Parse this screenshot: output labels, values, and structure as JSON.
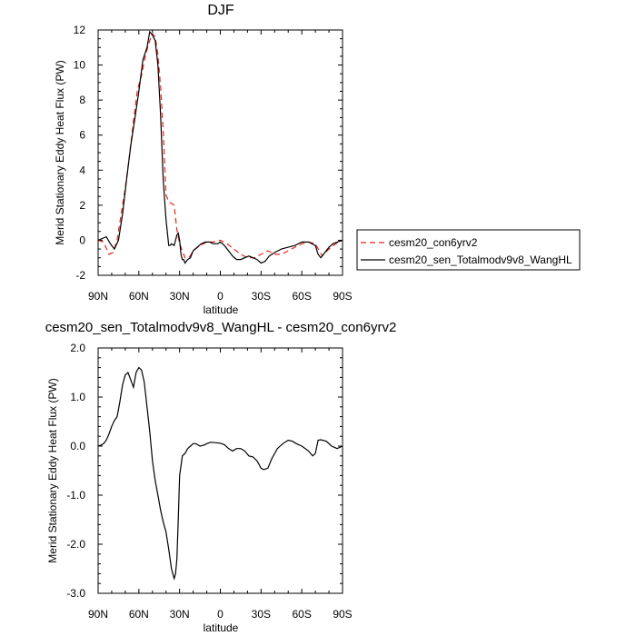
{
  "chart_data": [
    {
      "type": "line",
      "title": "DJF",
      "xlabel": "latitude",
      "ylabel": "Merid Stationary Eddy Heat Flux (PW)",
      "xlim": [
        90,
        -90
      ],
      "ylim": [
        -2,
        12
      ],
      "x_ticks": [
        90,
        60,
        30,
        0,
        -30,
        -60,
        -90
      ],
      "x_tick_labels": [
        "90N",
        "60N",
        "30N",
        "0",
        "30S",
        "60S",
        "90S"
      ],
      "y_ticks": [
        -2,
        0,
        2,
        4,
        6,
        8,
        10,
        12
      ],
      "y_tick_labels": [
        "-2",
        "0",
        "2",
        "4",
        "6",
        "8",
        "10",
        "12"
      ],
      "legend_position": "right",
      "series": [
        {
          "name": "cesm20_con6yrv2",
          "color": "#e8231e",
          "dash": "dashed",
          "x": [
            90,
            86,
            82,
            79,
            76,
            73,
            70,
            67,
            64,
            61,
            58,
            55,
            52,
            50,
            48,
            46,
            44,
            42,
            40,
            38,
            36,
            34,
            32,
            30,
            28,
            26,
            23,
            20,
            15,
            10,
            5,
            0,
            -5,
            -10,
            -15,
            -20,
            -25,
            -30,
            -35,
            -40,
            -45,
            -50,
            -55,
            -60,
            -65,
            -70,
            -75,
            -80,
            -85,
            -90
          ],
          "y": [
            0.0,
            -0.1,
            -0.8,
            -0.7,
            0.0,
            1.5,
            3.0,
            4.8,
            6.8,
            8.6,
            9.4,
            10.6,
            11.4,
            11.8,
            11.6,
            10.6,
            8.8,
            6.2,
            2.6,
            2.2,
            2.1,
            2.0,
            0.6,
            -0.2,
            -0.6,
            -1.0,
            -1.0,
            -0.6,
            -0.3,
            -0.1,
            -0.1,
            0.0,
            -0.2,
            -0.5,
            -0.8,
            -1.0,
            -1.0,
            -0.8,
            -0.6,
            -0.8,
            -0.8,
            -0.6,
            -0.4,
            -0.2,
            -0.1,
            -0.2,
            -0.9,
            -0.5,
            -0.2,
            0.0
          ]
        },
        {
          "name": "cesm20_sen_Totalmodv9v8_WangHL",
          "color": "#000000",
          "dash": "solid",
          "x": [
            90,
            87,
            84,
            81,
            78,
            75,
            72,
            69,
            66,
            63,
            60,
            57,
            54,
            52,
            50,
            48,
            46,
            44,
            42,
            40,
            38,
            37,
            36,
            34,
            32,
            31,
            30,
            29,
            28,
            27,
            26,
            24,
            22,
            20,
            17,
            14,
            11,
            8,
            5,
            2,
            0,
            -3,
            -6,
            -9,
            -12,
            -15,
            -18,
            -21,
            -24,
            -27,
            -30,
            -33,
            -36,
            -40,
            -45,
            -50,
            -55,
            -60,
            -65,
            -70,
            -72,
            -74,
            -77,
            -80,
            -83,
            -86,
            -90
          ],
          "y": [
            0.0,
            0.1,
            0.2,
            -0.2,
            -0.5,
            0.0,
            1.5,
            3.5,
            5.4,
            6.9,
            8.5,
            10.3,
            11.0,
            11.9,
            11.7,
            11.4,
            10.0,
            7.2,
            3.4,
            1.2,
            -0.3,
            -0.3,
            -0.2,
            -0.3,
            0.3,
            0.4,
            0.0,
            -0.8,
            -1.1,
            -1.1,
            -1.3,
            -1.1,
            -1.0,
            -0.6,
            -0.4,
            -0.2,
            -0.1,
            -0.1,
            -0.2,
            -0.2,
            -0.1,
            -0.3,
            -0.6,
            -0.9,
            -1.1,
            -1.1,
            -1.0,
            -0.9,
            -1.0,
            -1.1,
            -1.3,
            -1.2,
            -0.9,
            -0.7,
            -0.5,
            -0.4,
            -0.3,
            -0.1,
            -0.1,
            -0.3,
            -0.8,
            -1.0,
            -0.7,
            -0.4,
            -0.2,
            -0.1,
            0.0
          ]
        }
      ]
    },
    {
      "type": "line",
      "title": "cesm20_sen_Totalmodv9v8_WangHL - cesm20_con6yrv2",
      "xlabel": "latitude",
      "ylabel": "Merid Stationary Eddy Heat Flux (PW)",
      "xlim": [
        90,
        -90
      ],
      "ylim": [
        -3,
        2
      ],
      "x_ticks": [
        90,
        60,
        30,
        0,
        -30,
        -60,
        -90
      ],
      "x_tick_labels": [
        "90N",
        "60N",
        "30N",
        "0",
        "30S",
        "60S",
        "90S"
      ],
      "y_ticks": [
        -3,
        -2,
        -1,
        0,
        1,
        2
      ],
      "y_tick_labels": [
        "-3.0",
        "-2.0",
        "-1.0",
        "0.0",
        "1.0",
        "2.0"
      ],
      "series": [
        {
          "color": "#000000",
          "dash": "solid",
          "x": [
            90,
            88,
            86,
            84,
            82,
            80,
            78,
            76,
            74,
            72,
            70,
            68,
            66,
            64,
            62,
            60,
            58,
            56,
            54,
            52,
            50,
            48,
            46,
            44,
            42,
            40,
            38,
            36,
            34,
            33,
            32,
            31,
            30,
            28,
            26,
            24,
            22,
            20,
            18,
            15,
            12,
            10,
            7,
            4,
            0,
            -3,
            -6,
            -9,
            -12,
            -15,
            -18,
            -21,
            -24,
            -27,
            -30,
            -32,
            -35,
            -38,
            -42,
            -46,
            -50,
            -53,
            -56,
            -60,
            -65,
            -68,
            -70,
            -72,
            -74,
            -78,
            -82,
            -86,
            -90
          ],
          "y": [
            0.0,
            0.02,
            0.05,
            0.12,
            0.25,
            0.4,
            0.52,
            0.6,
            0.9,
            1.25,
            1.45,
            1.5,
            1.35,
            1.2,
            1.5,
            1.6,
            1.55,
            1.3,
            0.8,
            0.3,
            -0.3,
            -0.7,
            -1.0,
            -1.3,
            -1.55,
            -1.75,
            -2.1,
            -2.5,
            -2.7,
            -2.6,
            -2.3,
            -1.5,
            -0.6,
            -0.2,
            -0.15,
            -0.05,
            0.0,
            0.05,
            0.05,
            0.0,
            0.02,
            0.05,
            0.08,
            0.07,
            0.06,
            0.03,
            -0.05,
            -0.1,
            -0.05,
            -0.05,
            -0.1,
            -0.2,
            -0.22,
            -0.3,
            -0.45,
            -0.48,
            -0.45,
            -0.25,
            -0.05,
            0.05,
            0.12,
            0.1,
            0.05,
            0.0,
            -0.1,
            -0.2,
            -0.15,
            0.12,
            0.13,
            0.1,
            0.0,
            -0.05,
            0.0
          ]
        }
      ]
    }
  ]
}
